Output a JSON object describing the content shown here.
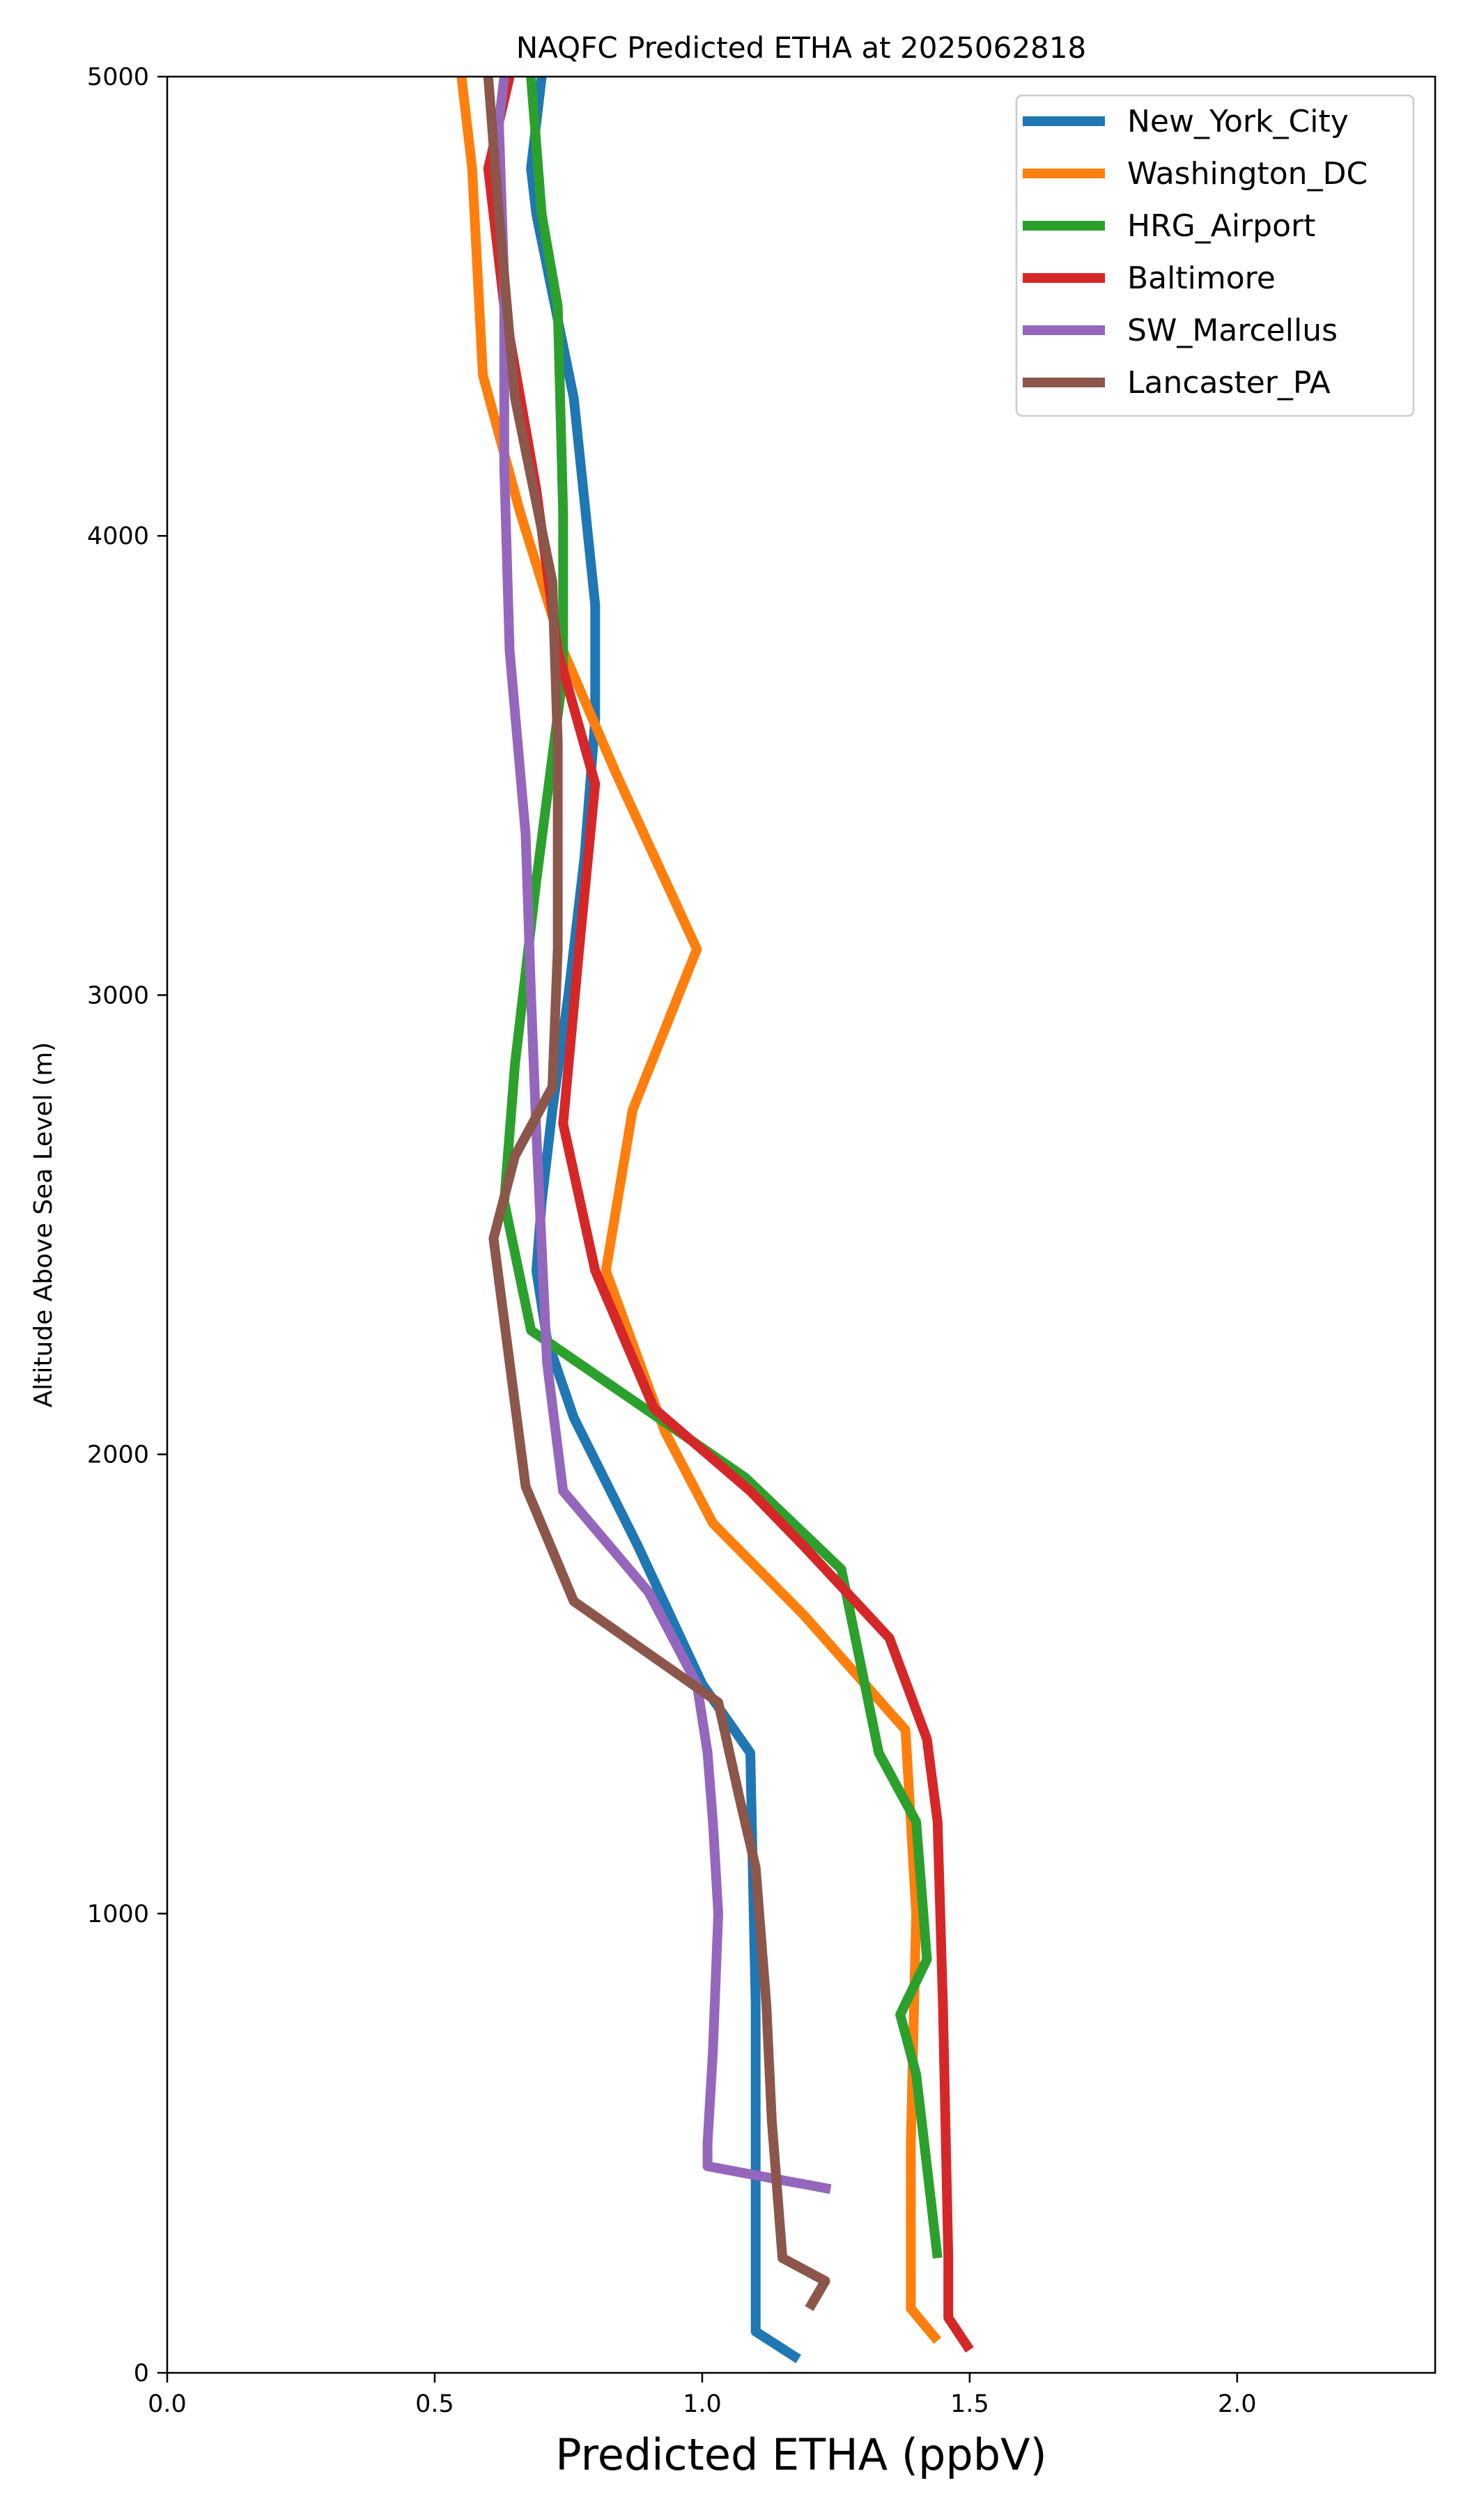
{
  "chart_data": {
    "type": "line",
    "title": "NAQFC Predicted ETHA at 2025062818",
    "xlabel": "Predicted ETHA (ppbV)",
    "ylabel": "Altitude Above Sea Level (m)",
    "xlim": [
      0.0,
      2.37
    ],
    "ylim": [
      0,
      5000
    ],
    "xticks": [
      0.0,
      0.5,
      1.0,
      1.5,
      2.0
    ],
    "xtick_labels": [
      "0.0",
      "0.5",
      "1.0",
      "1.5",
      "2.0"
    ],
    "yticks": [
      0,
      1000,
      2000,
      3000,
      4000,
      5000
    ],
    "ytick_labels": [
      "0",
      "1000",
      "2000",
      "3000",
      "4000",
      "5000"
    ],
    "grid": false,
    "legend_position": "top-right",
    "series": [
      {
        "name": "New_York_City",
        "color": "#1f77b4",
        "points": [
          [
            1.18,
            30
          ],
          [
            1.1,
            90
          ],
          [
            1.1,
            250
          ],
          [
            1.1,
            800
          ],
          [
            1.09,
            1350
          ],
          [
            1.0,
            1500
          ],
          [
            0.88,
            1800
          ],
          [
            0.76,
            2080
          ],
          [
            0.71,
            2250
          ],
          [
            0.69,
            2400
          ],
          [
            0.7,
            2550
          ],
          [
            0.72,
            2750
          ],
          [
            0.75,
            3000
          ],
          [
            0.78,
            3300
          ],
          [
            0.8,
            3600
          ],
          [
            0.8,
            3850
          ],
          [
            0.76,
            4300
          ],
          [
            0.69,
            4700
          ],
          [
            0.68,
            4800
          ],
          [
            0.7,
            5000
          ]
        ]
      },
      {
        "name": "Washington_DC",
        "color": "#ff7f0e",
        "points": [
          [
            1.44,
            70
          ],
          [
            1.39,
            140
          ],
          [
            1.39,
            500
          ],
          [
            1.4,
            1000
          ],
          [
            1.38,
            1400
          ],
          [
            1.19,
            1650
          ],
          [
            1.02,
            1850
          ],
          [
            0.93,
            2050
          ],
          [
            0.82,
            2400
          ],
          [
            0.87,
            2750
          ],
          [
            0.99,
            3100
          ],
          [
            0.84,
            3480
          ],
          [
            0.74,
            3750
          ],
          [
            0.66,
            4050
          ],
          [
            0.59,
            4350
          ],
          [
            0.57,
            4800
          ],
          [
            0.55,
            5000
          ]
        ]
      },
      {
        "name": "HRG_Airport",
        "color": "#2ca02c",
        "points": [
          [
            1.44,
            250
          ],
          [
            1.42,
            450
          ],
          [
            1.4,
            650
          ],
          [
            1.37,
            780
          ],
          [
            1.42,
            900
          ],
          [
            1.4,
            1200
          ],
          [
            1.33,
            1350
          ],
          [
            1.26,
            1750
          ],
          [
            1.08,
            1950
          ],
          [
            0.83,
            2150
          ],
          [
            0.68,
            2270
          ],
          [
            0.63,
            2550
          ],
          [
            0.65,
            2850
          ],
          [
            0.69,
            3250
          ],
          [
            0.74,
            3700
          ],
          [
            0.74,
            4050
          ],
          [
            0.73,
            4500
          ],
          [
            0.7,
            4700
          ],
          [
            0.68,
            5000
          ]
        ]
      },
      {
        "name": "Baltimore",
        "color": "#d62728",
        "points": [
          [
            1.5,
            50
          ],
          [
            1.46,
            120
          ],
          [
            1.46,
            250
          ],
          [
            1.45,
            800
          ],
          [
            1.44,
            1200
          ],
          [
            1.42,
            1380
          ],
          [
            1.35,
            1600
          ],
          [
            1.19,
            1800
          ],
          [
            1.09,
            1920
          ],
          [
            0.91,
            2100
          ],
          [
            0.8,
            2400
          ],
          [
            0.74,
            2720
          ],
          [
            0.77,
            3100
          ],
          [
            0.8,
            3460
          ],
          [
            0.73,
            3750
          ],
          [
            0.69,
            4100
          ],
          [
            0.63,
            4500
          ],
          [
            0.6,
            4800
          ],
          [
            0.64,
            5000
          ]
        ]
      },
      {
        "name": "SW_Marcellus",
        "color": "#9467bd",
        "points": [
          [
            1.24,
            400
          ],
          [
            1.01,
            450
          ],
          [
            1.01,
            500
          ],
          [
            1.02,
            700
          ],
          [
            1.03,
            1000
          ],
          [
            1.02,
            1200
          ],
          [
            1.01,
            1350
          ],
          [
            0.99,
            1500
          ],
          [
            0.9,
            1700
          ],
          [
            0.74,
            1920
          ],
          [
            0.71,
            2200
          ],
          [
            0.69,
            2700
          ],
          [
            0.68,
            3000
          ],
          [
            0.67,
            3350
          ],
          [
            0.64,
            3750
          ],
          [
            0.63,
            4150
          ],
          [
            0.63,
            4550
          ],
          [
            0.62,
            4900
          ],
          [
            0.63,
            5000
          ]
        ]
      },
      {
        "name": "Lancaster_PA",
        "color": "#8c564b",
        "points": [
          [
            1.2,
            140
          ],
          [
            1.23,
            200
          ],
          [
            1.15,
            250
          ],
          [
            1.13,
            550
          ],
          [
            1.12,
            800
          ],
          [
            1.1,
            1100
          ],
          [
            1.07,
            1250
          ],
          [
            1.03,
            1460
          ],
          [
            0.76,
            1680
          ],
          [
            0.67,
            1930
          ],
          [
            0.64,
            2200
          ],
          [
            0.61,
            2470
          ],
          [
            0.65,
            2650
          ],
          [
            0.72,
            2800
          ],
          [
            0.73,
            3100
          ],
          [
            0.73,
            3550
          ],
          [
            0.72,
            3900
          ],
          [
            0.65,
            4300
          ],
          [
            0.62,
            4700
          ],
          [
            0.6,
            5000
          ]
        ]
      }
    ]
  }
}
